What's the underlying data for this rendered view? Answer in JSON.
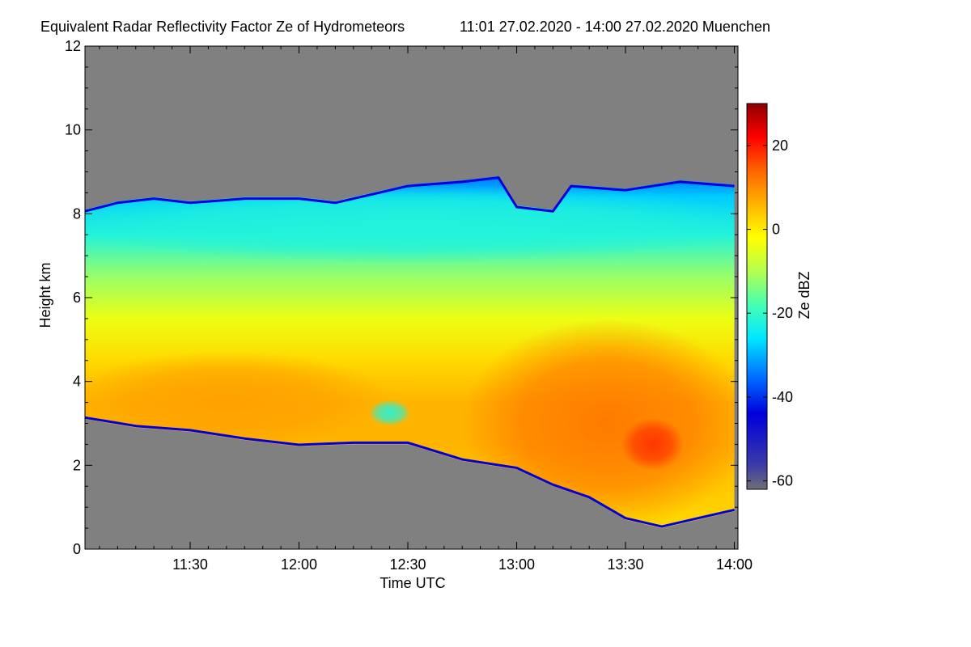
{
  "chart_data": {
    "type": "heatmap",
    "title": "Equivalent Radar Reflectivity Factor Ze of Hydrometeors",
    "subtitle": "11:01 27.02.2020 - 14:00 27.02.2020 Muenchen",
    "xlabel": "Time UTC",
    "ylabel": "Height km",
    "colorbar_label": "Ze dBZ",
    "x_start": "11:01",
    "x_end": "14:00",
    "xlim": [
      "11:01",
      "14:01"
    ],
    "ylim": [
      0,
      12
    ],
    "x_ticks": [
      {
        "time": "11:30",
        "label": "11:30"
      },
      {
        "time": "12:00",
        "label": "12:00"
      },
      {
        "time": "12:30",
        "label": "12:30"
      },
      {
        "time": "13:00",
        "label": "13:00"
      },
      {
        "time": "13:30",
        "label": "13:30"
      },
      {
        "time": "14:00",
        "label": "14:00"
      }
    ],
    "y_ticks": [
      {
        "value": 0,
        "label": "0"
      },
      {
        "value": 2,
        "label": "2"
      },
      {
        "value": 4,
        "label": "4"
      },
      {
        "value": 6,
        "label": "6"
      },
      {
        "value": 8,
        "label": "8"
      },
      {
        "value": 10,
        "label": "10"
      },
      {
        "value": 12,
        "label": "12"
      }
    ],
    "colorbar_range": [
      -62,
      30
    ],
    "colorbar_ticks": [
      {
        "value": 20,
        "label": "20"
      },
      {
        "value": 0,
        "label": "0"
      },
      {
        "value": -20,
        "label": "-20"
      },
      {
        "value": -40,
        "label": "-40"
      },
      {
        "value": -60,
        "label": "-60"
      }
    ],
    "background_color": "#808080",
    "colormap": [
      {
        "value": -62,
        "color": "#6e6e78"
      },
      {
        "value": -56,
        "color": "#3a3aa8"
      },
      {
        "value": -44,
        "color": "#0000dc"
      },
      {
        "value": -36,
        "color": "#0064ff"
      },
      {
        "value": -26,
        "color": "#00e6ff"
      },
      {
        "value": -18,
        "color": "#46ffb4"
      },
      {
        "value": -10,
        "color": "#b4ff50"
      },
      {
        "value": -2,
        "color": "#ffff00"
      },
      {
        "value": 6,
        "color": "#ffb400"
      },
      {
        "value": 14,
        "color": "#ff6400"
      },
      {
        "value": 22,
        "color": "#ff0000"
      },
      {
        "value": 30,
        "color": "#8b0000"
      }
    ],
    "cloud_top_km": [
      {
        "time": "11:01",
        "value": 8.1
      },
      {
        "time": "11:10",
        "value": 8.3
      },
      {
        "time": "11:20",
        "value": 8.4
      },
      {
        "time": "11:30",
        "value": 8.3
      },
      {
        "time": "11:45",
        "value": 8.4
      },
      {
        "time": "12:00",
        "value": 8.4
      },
      {
        "time": "12:10",
        "value": 8.3
      },
      {
        "time": "12:20",
        "value": 8.5
      },
      {
        "time": "12:30",
        "value": 8.7
      },
      {
        "time": "12:45",
        "value": 8.8
      },
      {
        "time": "12:55",
        "value": 8.9
      },
      {
        "time": "13:00",
        "value": 8.2
      },
      {
        "time": "13:10",
        "value": 8.1
      },
      {
        "time": "13:15",
        "value": 8.7
      },
      {
        "time": "13:30",
        "value": 8.6
      },
      {
        "time": "13:45",
        "value": 8.8
      },
      {
        "time": "14:00",
        "value": 8.7
      }
    ],
    "cloud_base_km": [
      {
        "time": "11:01",
        "value": 3.1
      },
      {
        "time": "11:15",
        "value": 2.9
      },
      {
        "time": "11:30",
        "value": 2.8
      },
      {
        "time": "11:45",
        "value": 2.6
      },
      {
        "time": "12:00",
        "value": 2.45
      },
      {
        "time": "12:15",
        "value": 2.5
      },
      {
        "time": "12:30",
        "value": 2.5
      },
      {
        "time": "12:45",
        "value": 2.1
      },
      {
        "time": "13:00",
        "value": 1.9
      },
      {
        "time": "13:10",
        "value": 1.5
      },
      {
        "time": "13:20",
        "value": 1.2
      },
      {
        "time": "13:30",
        "value": 0.7
      },
      {
        "time": "13:40",
        "value": 0.5
      },
      {
        "time": "13:50",
        "value": 0.7
      },
      {
        "time": "14:00",
        "value": 0.9
      }
    ],
    "reflectivity_zones_dbz": [
      {
        "time_range": [
          "11:01",
          "12:20"
        ],
        "height_range_km": [
          2.6,
          4.5
        ],
        "value": 8
      },
      {
        "time_range": [
          "12:20",
          "12:30"
        ],
        "height_range_km": [
          3.0,
          3.5
        ],
        "value": -22
      },
      {
        "time_range": [
          "12:50",
          "14:00"
        ],
        "height_range_km": [
          1.0,
          5.0
        ],
        "value": 12
      },
      {
        "time_range": [
          "13:30",
          "13:45"
        ],
        "height_range_km": [
          2.0,
          3.0
        ],
        "value": 18
      },
      {
        "time_range": [
          "11:01",
          "14:00"
        ],
        "height_range_km": [
          7.0,
          8.5
        ],
        "value": -22
      }
    ]
  }
}
